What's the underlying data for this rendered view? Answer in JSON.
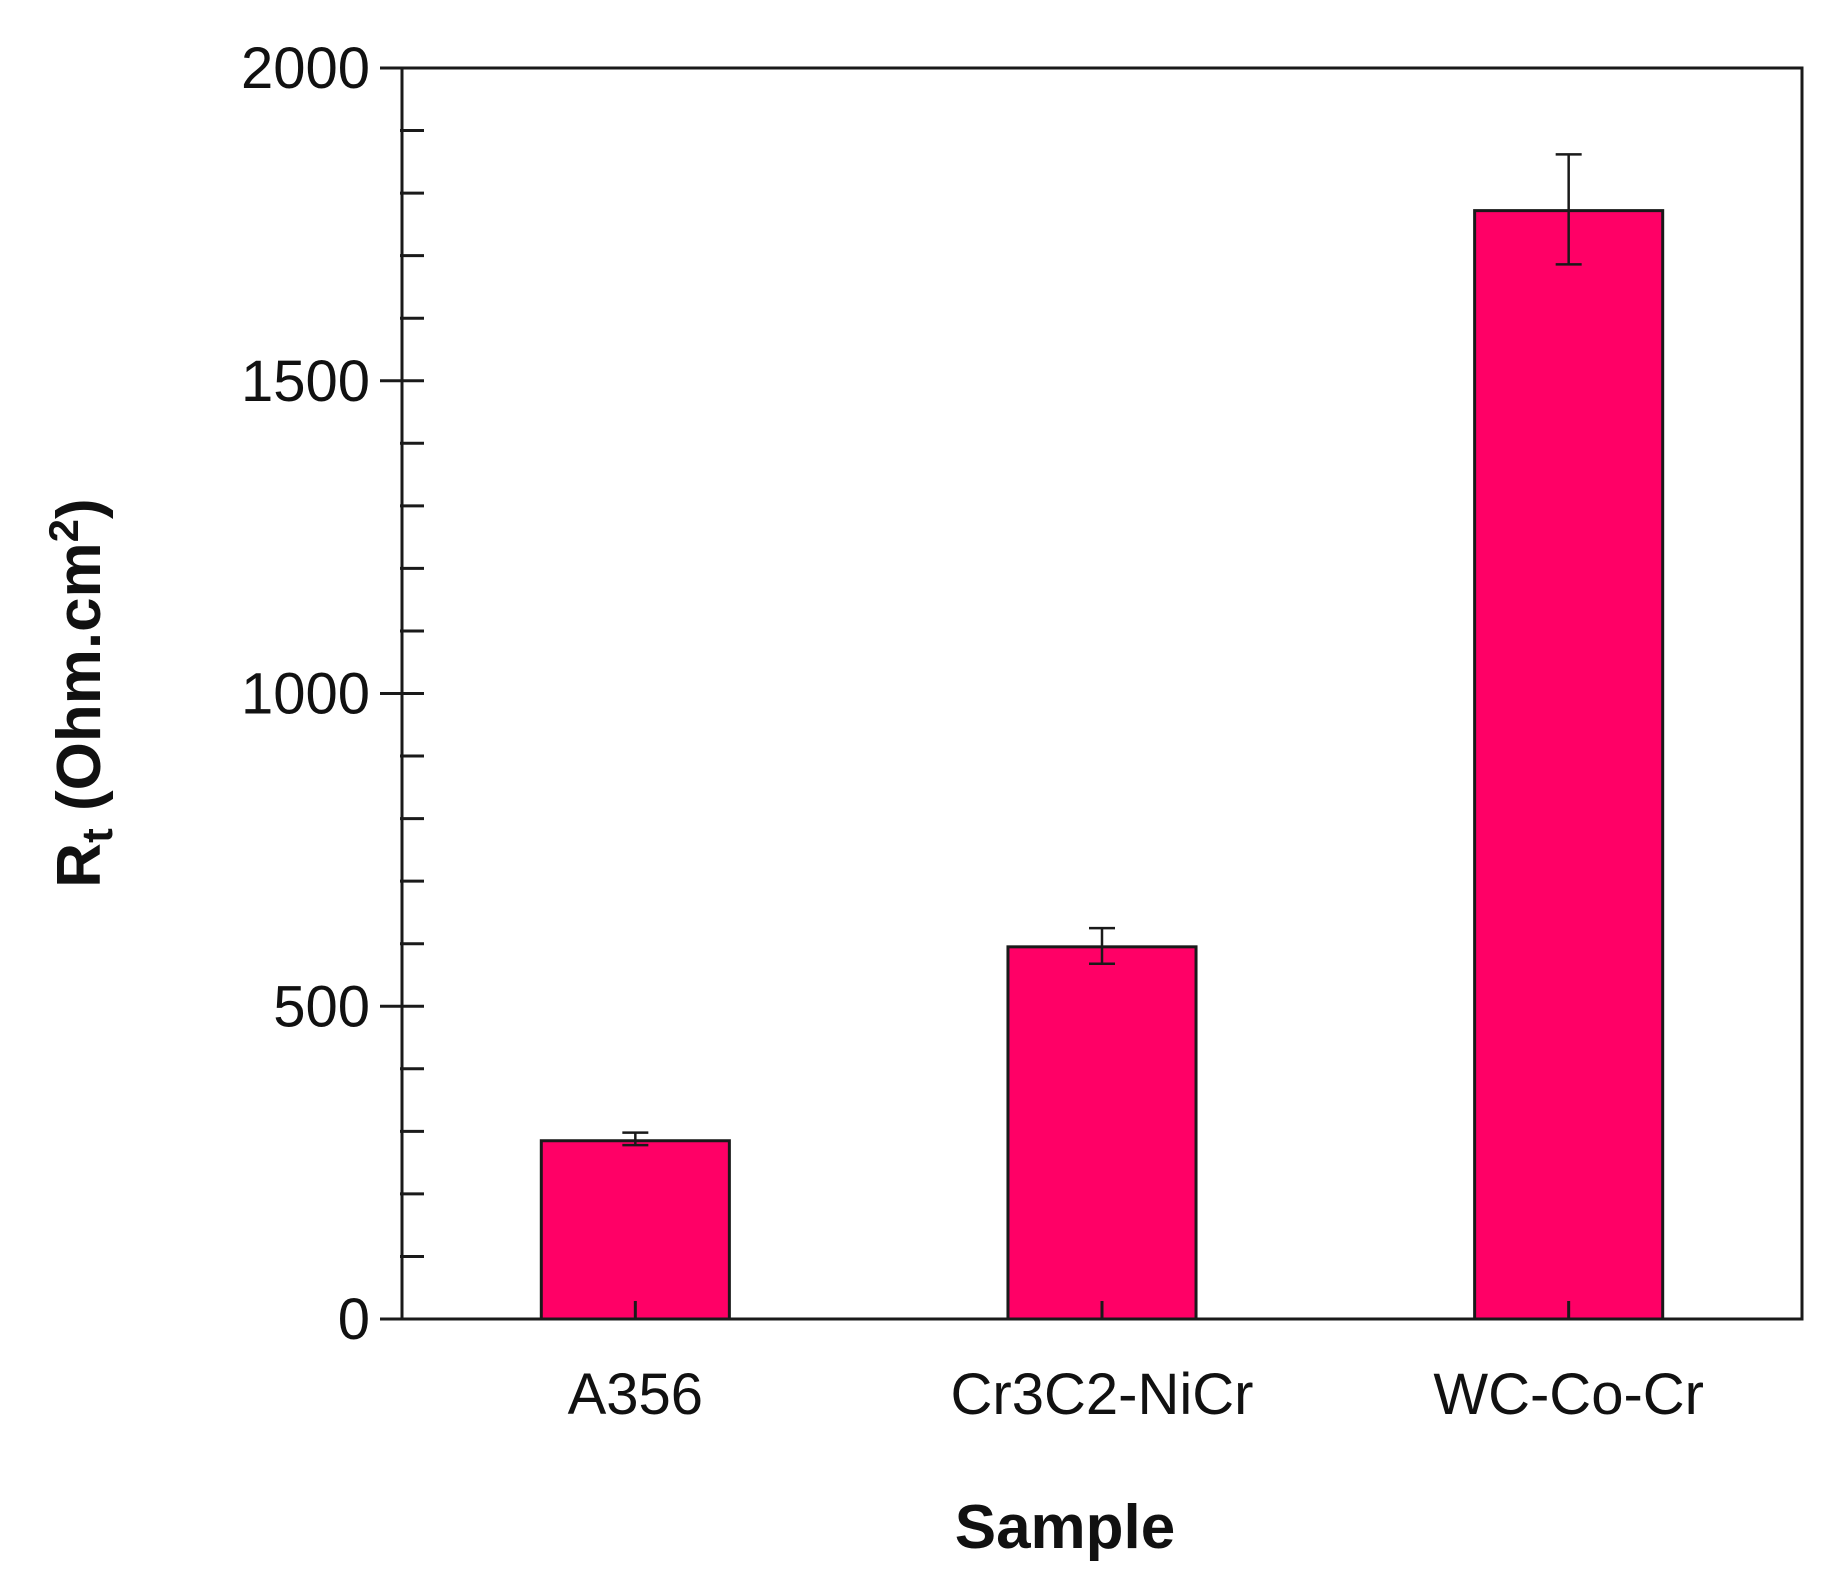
{
  "chart_data": {
    "type": "bar",
    "categories": [
      "A356",
      "Cr3C2-NiCr",
      "WC-Co-Cr"
    ],
    "values": [
      285,
      595,
      1772
    ],
    "errors": [
      [
        278,
        298
      ],
      [
        568,
        625
      ],
      [
        1686,
        1862
      ]
    ],
    "xlabel": "Sample",
    "ylabel_symbol": "R",
    "ylabel_subscript": "t",
    "ylabel_unit": " (Ohm.cm",
    "ylabel_superscript": "2",
    "ylabel_close": ")",
    "ylim": [
      0,
      2000
    ],
    "yticks": [
      "0",
      "500",
      "1000",
      "1500",
      "2000"
    ],
    "minor_tick_step": 100,
    "grid": false,
    "bar_color": "#ff0066",
    "edge_color": "#1a1a1a"
  }
}
